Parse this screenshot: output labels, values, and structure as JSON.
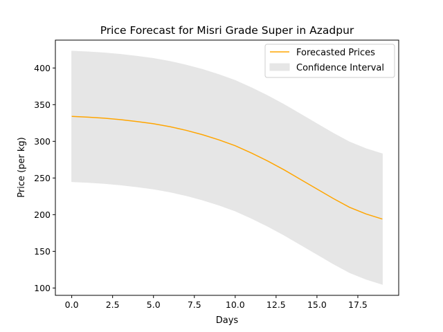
{
  "chart_data": {
    "type": "line",
    "title": "Price Forecast for Misri Grade Super in Azadpur",
    "xlabel": "Days",
    "ylabel": "Price (per kg)",
    "xlim": [
      -1.0,
      20.0
    ],
    "ylim": [
      90,
      438
    ],
    "xticks": [
      0.0,
      2.5,
      5.0,
      7.5,
      10.0,
      12.5,
      15.0,
      17.5
    ],
    "yticks": [
      100,
      150,
      200,
      250,
      300,
      350,
      400
    ],
    "grid": false,
    "legend_position": "upper right",
    "x": [
      0,
      1,
      2,
      3,
      4,
      5,
      6,
      7,
      8,
      9,
      10,
      11,
      12,
      13,
      14,
      15,
      16,
      17,
      18,
      19
    ],
    "series": [
      {
        "name": "Forecasted Prices",
        "color": "#ffa500",
        "values": [
          334,
          333,
          331.5,
          329.5,
          327,
          324,
          320,
          315,
          309,
          302,
          294,
          284,
          273,
          261,
          248,
          235,
          222,
          210,
          201,
          194
        ]
      }
    ],
    "confidence_interval": {
      "name": "Confidence Interval",
      "color": "#e6e6e6",
      "upper": [
        423,
        422,
        420.5,
        418.5,
        416,
        413,
        409,
        404,
        398,
        391,
        383,
        373,
        362,
        350,
        337,
        324,
        311,
        299,
        290,
        283
      ],
      "lower": [
        245,
        244,
        242.5,
        240.5,
        238,
        235,
        231,
        226,
        220,
        213,
        205,
        195,
        184,
        172,
        159,
        146,
        133,
        121,
        112,
        105
      ]
    }
  }
}
